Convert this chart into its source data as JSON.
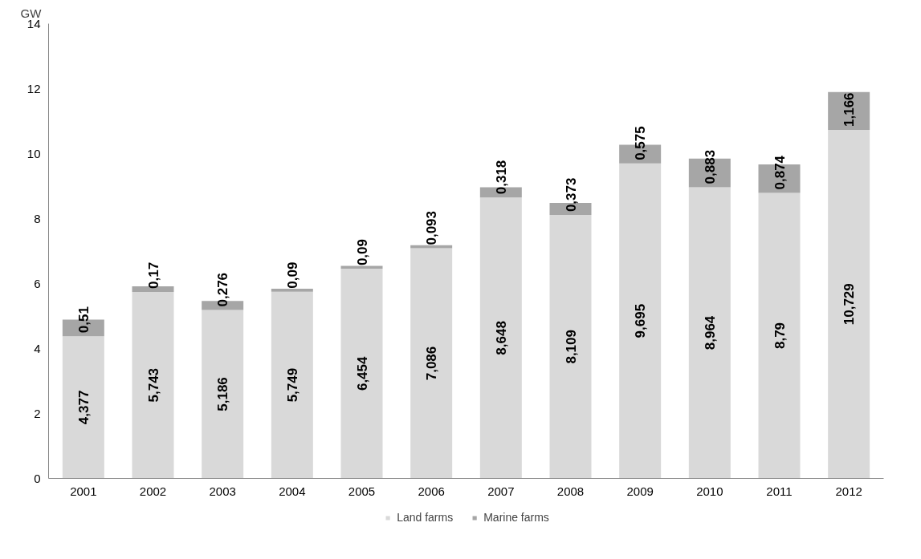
{
  "chart_data": {
    "type": "bar",
    "stacked": true,
    "ylabel": "GW",
    "categories": [
      "2001",
      "2002",
      "2003",
      "2004",
      "2005",
      "2006",
      "2007",
      "2008",
      "2009",
      "2010",
      "2011",
      "2012"
    ],
    "series": [
      {
        "name": "Land farms",
        "color": "#d9d9d9",
        "values": [
          4.377,
          5.743,
          5.186,
          5.749,
          6.454,
          7.086,
          8.648,
          8.109,
          9.695,
          8.964,
          8.79,
          10.729
        ],
        "value_labels": [
          "4,377",
          "5,743",
          "5,186",
          "5,749",
          "6,454",
          "7,086",
          "8,648",
          "8,109",
          "9,695",
          "8,964",
          "8,79",
          "10,729"
        ]
      },
      {
        "name": "Marine farms",
        "color": "#a6a6a6",
        "values": [
          0.51,
          0.17,
          0.276,
          0.09,
          0.09,
          0.093,
          0.318,
          0.373,
          0.575,
          0.883,
          0.874,
          1.166
        ],
        "value_labels": [
          "0,51",
          "0,17",
          "0,276",
          "0,09",
          "0,09",
          "0,093",
          "0,318",
          "0,373",
          "0,575",
          "0,883",
          "0,874",
          "1,166"
        ]
      }
    ],
    "ylim": [
      0,
      14
    ],
    "yticks": [
      0,
      2,
      4,
      6,
      8,
      10,
      12,
      14
    ],
    "grid": false,
    "legend": "bottom"
  }
}
